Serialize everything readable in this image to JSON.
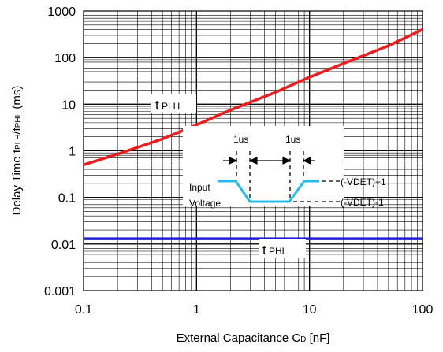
{
  "chart_data": {
    "type": "line",
    "title": "",
    "xlabel": "External Capacitance C",
    "xlabel_sub": "D",
    "xlabel_unit": " [nF]",
    "ylabel_parts": [
      "Delay Time t",
      "PLH",
      "/t",
      "PHL",
      " (ms)"
    ],
    "x_scale": "log",
    "y_scale": "log",
    "xlim": [
      0.1,
      100
    ],
    "ylim": [
      0.001,
      1000
    ],
    "grid": true,
    "x_ticks": [
      0.1,
      1,
      10,
      100
    ],
    "x_tick_labels": [
      "0.1",
      "1",
      "10",
      "100"
    ],
    "y_ticks": [
      0.001,
      0.01,
      0.1,
      1,
      10,
      100,
      1000
    ],
    "y_tick_labels": [
      "0.001",
      "0.01",
      "0.1",
      "1",
      "10",
      "100",
      "1000"
    ],
    "series": [
      {
        "name": "tPLH",
        "label_main": "t",
        "label_sub": "PLH",
        "color": "#ee1c1c",
        "x": [
          0.1,
          0.2,
          0.5,
          1,
          2,
          5,
          10,
          20,
          50,
          100
        ],
        "y": [
          0.5,
          0.85,
          1.8,
          3.6,
          7.5,
          18,
          38,
          75,
          180,
          400
        ]
      },
      {
        "name": "tPHL",
        "label_main": "t",
        "label_sub": "PHL",
        "color": "#1f22d6",
        "x": [
          0.1,
          100
        ],
        "y": [
          0.013,
          0.013
        ]
      }
    ],
    "inset": {
      "input_label_line1": "Input",
      "input_label_line2": "Voltage",
      "timing_label_1": "1us",
      "timing_label_2": "1us",
      "level_high": "(-VDET)+1",
      "level_low": "(-VDET)-1",
      "waveform_color": "#22bde8"
    }
  }
}
